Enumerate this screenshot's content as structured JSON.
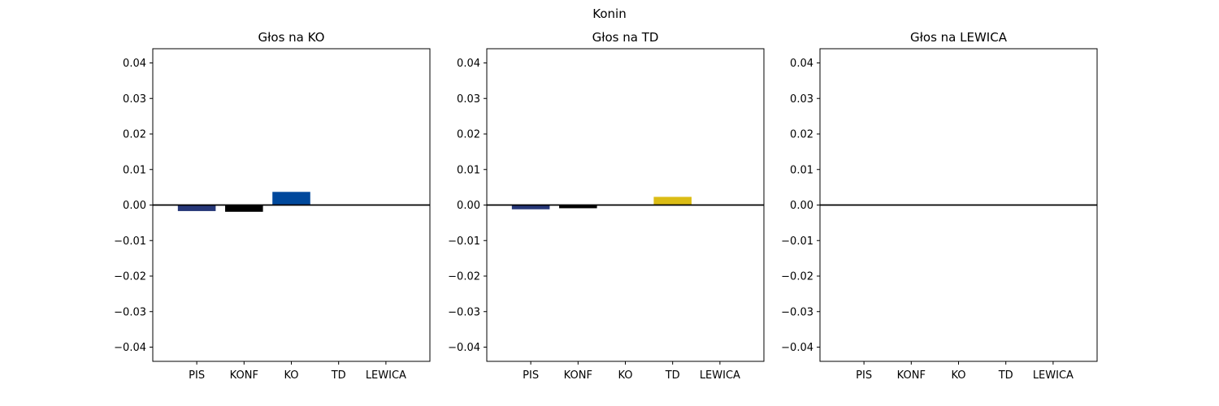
{
  "suptitle": "Konin",
  "colors": {
    "PIS": "#263778",
    "KONF": "#000000",
    "KO": "#00489c",
    "TD": "#dbbc15",
    "LEWICA": "#c01f1f"
  },
  "chart_data": [
    {
      "type": "bar",
      "title": "Głos na KO",
      "categories": [
        "PIS",
        "KONF",
        "KO",
        "TD",
        "LEWICA"
      ],
      "values": [
        -0.0017,
        -0.0019,
        0.0037,
        0.0,
        0.0
      ],
      "ylim": [
        -0.044,
        0.044
      ],
      "yticks": [
        "0.04",
        "0.03",
        "0.02",
        "0.01",
        "0.00",
        "−0.01",
        "−0.02",
        "−0.03",
        "−0.04"
      ],
      "grid": false,
      "zero_line": true
    },
    {
      "type": "bar",
      "title": "Głos na TD",
      "categories": [
        "PIS",
        "KONF",
        "KO",
        "TD",
        "LEWICA"
      ],
      "values": [
        -0.0012,
        -0.0009,
        0.0,
        0.0023,
        0.0
      ],
      "ylim": [
        -0.044,
        0.044
      ],
      "yticks": [
        "0.04",
        "0.03",
        "0.02",
        "0.01",
        "0.00",
        "−0.01",
        "−0.02",
        "−0.03",
        "−0.04"
      ],
      "grid": false,
      "zero_line": true
    },
    {
      "type": "bar",
      "title": "Głos na LEWICA",
      "categories": [
        "PIS",
        "KONF",
        "KO",
        "TD",
        "LEWICA"
      ],
      "values": [
        0.0,
        0.0,
        0.0,
        0.0,
        0.0
      ],
      "ylim": [
        -0.044,
        0.044
      ],
      "yticks": [
        "0.04",
        "0.03",
        "0.02",
        "0.01",
        "0.00",
        "−0.01",
        "−0.02",
        "−0.03",
        "−0.04"
      ],
      "grid": false,
      "zero_line": true
    }
  ]
}
